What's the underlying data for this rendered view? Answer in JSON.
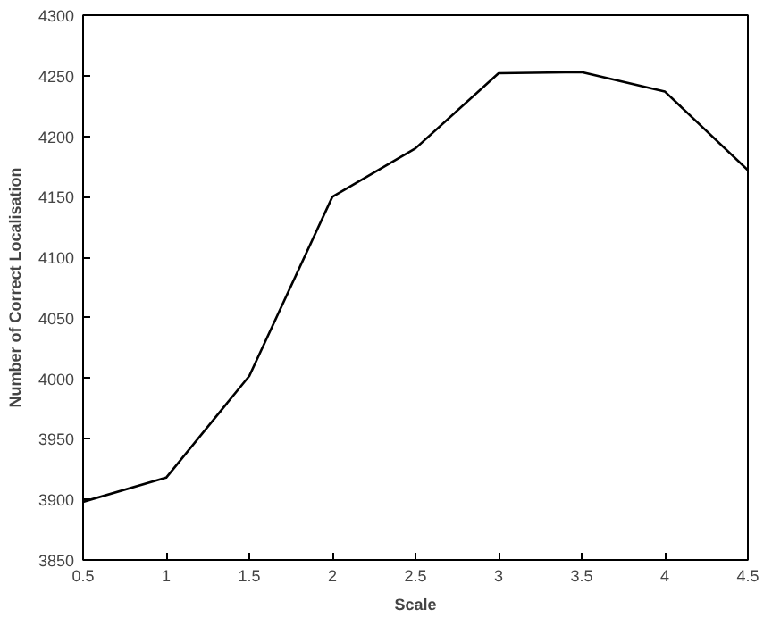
{
  "chart_data": {
    "type": "line",
    "xlabel": "Scale",
    "ylabel": "Number of Correct Localisation",
    "x": [
      0.5,
      1,
      1.5,
      2,
      2.5,
      3,
      3.5,
      4,
      4.5
    ],
    "series": [
      {
        "color": "#000000",
        "values": [
          3898,
          3918,
          4002,
          4150,
          4190,
          4252,
          4253,
          4237,
          4172
        ]
      }
    ],
    "xlim": [
      0.5,
      4.5
    ],
    "xticks": [
      0.5,
      1,
      1.5,
      2,
      2.5,
      3,
      3.5,
      4,
      4.5
    ],
    "ylim": [
      3850,
      4300
    ],
    "yticks": [
      3850,
      3900,
      3950,
      4000,
      4050,
      4100,
      4150,
      4200,
      4250,
      4300
    ],
    "grid": false,
    "marker": "none",
    "line_style": "solid"
  }
}
